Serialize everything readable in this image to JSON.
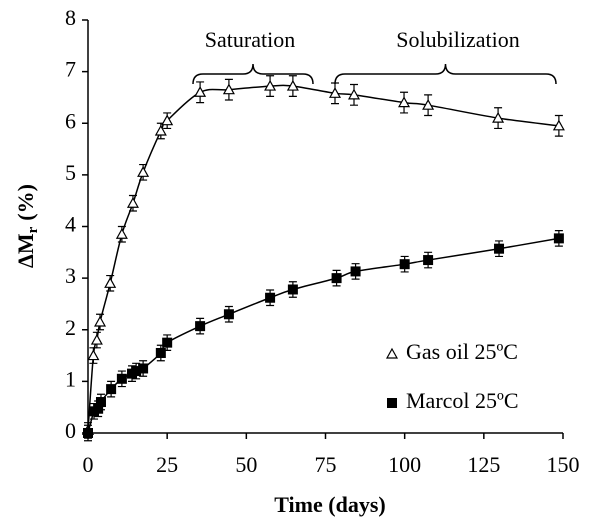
{
  "chart_data": {
    "type": "scatter",
    "x_label": "Time (days)",
    "y_label_parts": [
      "ΔM",
      "r",
      "(%)"
    ],
    "annotations": [
      "Saturation",
      "Solubilization"
    ],
    "xlim": [
      0,
      150
    ],
    "xticks": [
      0,
      25,
      50,
      75,
      100,
      125,
      150
    ],
    "ylim": [
      0,
      8
    ],
    "yticks": [
      0,
      1,
      2,
      3,
      4,
      5,
      6,
      7,
      8
    ],
    "grid": false,
    "legend": "lower right",
    "series": [
      {
        "name": "Gas oil 25ºC",
        "color": "#000000",
        "marker": "triangle",
        "x": [
          0,
          1.7,
          2.8,
          3.8,
          7,
          10.7,
          14.2,
          17.4,
          23,
          25,
          35.4,
          44.5,
          57.5,
          64.7,
          78,
          84,
          99.8,
          107.4,
          129.5,
          148.7
        ],
        "values": [
          0.05,
          1.5,
          1.8,
          2.15,
          2.9,
          3.85,
          4.45,
          5.05,
          5.85,
          6.05,
          6.6,
          6.65,
          6.72,
          6.72,
          6.58,
          6.55,
          6.4,
          6.35,
          6.1,
          5.95
        ],
        "errors": [
          0.15,
          0.15,
          0.15,
          0.15,
          0.15,
          0.15,
          0.15,
          0.15,
          0.15,
          0.15,
          0.2,
          0.2,
          0.2,
          0.2,
          0.2,
          0.2,
          0.2,
          0.2,
          0.2,
          0.2
        ]
      },
      {
        "name": "Marcol 25ºC",
        "color": "#000000",
        "marker": "square",
        "x": [
          0,
          1.9,
          3.2,
          4.1,
          7.3,
          10.7,
          13.9,
          15.2,
          17.4,
          23,
          25,
          35.4,
          44.5,
          57.5,
          64.7,
          78.5,
          84.5,
          100,
          107.4,
          129.8,
          148.7
        ],
        "values": [
          0,
          0.42,
          0.47,
          0.6,
          0.85,
          1.05,
          1.15,
          1.2,
          1.25,
          1.55,
          1.75,
          2.07,
          2.3,
          2.62,
          2.78,
          3.0,
          3.13,
          3.27,
          3.35,
          3.57,
          3.77
        ],
        "errors": [
          0.15,
          0.15,
          0.15,
          0.15,
          0.15,
          0.15,
          0.15,
          0.15,
          0.15,
          0.15,
          0.15,
          0.15,
          0.15,
          0.15,
          0.15,
          0.15,
          0.15,
          0.15,
          0.15,
          0.15,
          0.15
        ]
      }
    ]
  }
}
